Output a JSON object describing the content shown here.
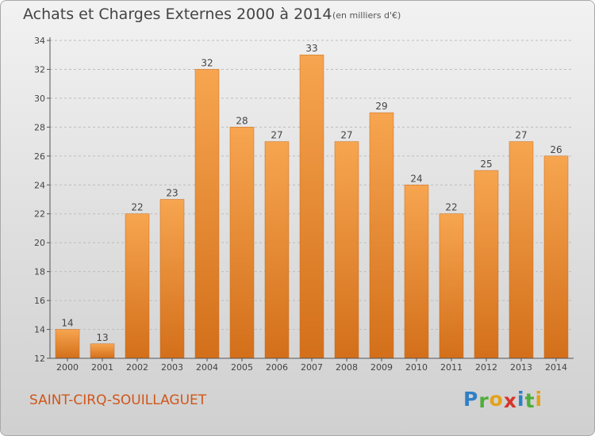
{
  "header": {
    "title": "Achats et Charges Externes 2000 à 2014",
    "unit": "(en milliers d'€)"
  },
  "footer": {
    "commune": "SAINT-CIRQ-SOUILLAGUET",
    "logo_text": "Proxiti",
    "logo_letters": [
      {
        "char": "P",
        "color": "#2f7fc6"
      },
      {
        "char": "r",
        "color": "#4fae3b"
      },
      {
        "char": "o",
        "color": "#e3a21a"
      },
      {
        "char": "x",
        "color": "#d8342a"
      },
      {
        "char": "i",
        "color": "#2f7fc6"
      },
      {
        "char": "t",
        "color": "#4fae3b"
      },
      {
        "char": "i",
        "color": "#e3a21a"
      }
    ]
  },
  "chart_data": {
    "type": "bar",
    "title": "Achats et Charges Externes 2000 à 2014",
    "subtitle": "(en milliers d'€)",
    "xlabel": "",
    "ylabel": "",
    "categories": [
      "2000",
      "2001",
      "2002",
      "2003",
      "2004",
      "2005",
      "2006",
      "2007",
      "2008",
      "2009",
      "2010",
      "2011",
      "2012",
      "2013",
      "2014"
    ],
    "values": [
      14,
      13,
      22,
      23,
      32,
      28,
      27,
      33,
      27,
      29,
      24,
      22,
      25,
      27,
      26
    ],
    "ylim": [
      12,
      34
    ],
    "yticks": [
      12,
      14,
      16,
      18,
      20,
      22,
      24,
      26,
      28,
      30,
      32,
      34
    ],
    "grid": "horizontal dashed",
    "bar_color_top": "#f7a550",
    "bar_color_bottom": "#d36f1a",
    "legend": "none"
  }
}
